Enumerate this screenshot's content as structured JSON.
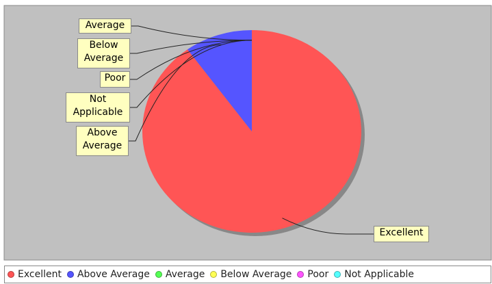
{
  "chart_data": {
    "type": "pie",
    "categories": [
      "Excellent",
      "Above Average",
      "Average",
      "Below Average",
      "Poor",
      "Not Applicable"
    ],
    "values": [
      90,
      10,
      0,
      0,
      0,
      0
    ],
    "colors": [
      "#ff5555",
      "#5555ff",
      "#55ff55",
      "#ffff55",
      "#ff55ff",
      "#55ffff"
    ],
    "legend": "bottom"
  }
}
